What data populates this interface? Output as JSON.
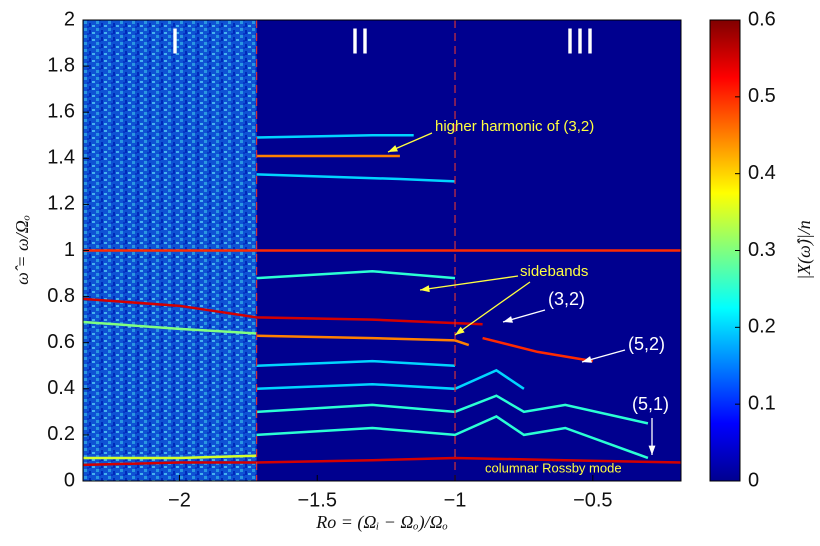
{
  "chart_data": {
    "type": "spectrogram",
    "xlabel": "Ro = (Ωᵢ − Ωₒ)/Ωₒ",
    "ylabel": "ω̂ = ω/Ωₒ",
    "colorbar_label": "|X(ω̂)|/n",
    "colormap": "jet",
    "background_color": "#00008f",
    "xlim": [
      -2.35,
      -0.18
    ],
    "ylim": [
      0,
      2
    ],
    "xticks": [
      {
        "value": -2,
        "label": "−2"
      },
      {
        "value": -1.5,
        "label": "−1.5"
      },
      {
        "value": -1,
        "label": "−1"
      },
      {
        "value": -0.5,
        "label": "−0.5"
      }
    ],
    "yticks": [
      0,
      0.2,
      0.4,
      0.6,
      0.8,
      1,
      1.2,
      1.4,
      1.6,
      1.8,
      2
    ],
    "clim": [
      0,
      0.6
    ],
    "cticks": [
      0,
      0.1,
      0.2,
      0.3,
      0.4,
      0.5,
      0.6
    ],
    "vlines": [
      -1.72,
      -1
    ],
    "vline_color": "#d0303a",
    "regions": [
      "I",
      "II",
      "III"
    ],
    "series": [
      {
        "level": 0.5,
        "x": [
          -2.35,
          -1.72,
          -1,
          -0.18
        ],
        "values": [
          1.0,
          1.0,
          1.0,
          1.0
        ]
      },
      {
        "level": 0.45,
        "x": [
          -1.72,
          -1.45,
          -1.2
        ],
        "values": [
          1.41,
          1.41,
          1.41
        ]
      },
      {
        "level": 0.55,
        "x": [
          -2.35,
          -2,
          -1.72,
          -1.3,
          -1,
          -0.6,
          -0.18
        ],
        "values": [
          0.07,
          0.08,
          0.08,
          0.09,
          0.1,
          0.09,
          0.08
        ]
      },
      {
        "level": 0.55,
        "x": [
          -2.35,
          -2,
          -1.72,
          -1.3,
          -0.9
        ],
        "values": [
          0.79,
          0.76,
          0.71,
          0.7,
          0.68
        ]
      },
      {
        "level": 0.45,
        "x": [
          -1.72,
          -1.3,
          -1,
          -0.95
        ],
        "values": [
          0.63,
          0.62,
          0.61,
          0.59
        ]
      },
      {
        "level": 0.5,
        "x": [
          -0.9,
          -0.7,
          -0.5
        ],
        "values": [
          0.62,
          0.56,
          0.52
        ]
      },
      {
        "level": 0.25,
        "x": [
          -1.72,
          -1.3,
          -1
        ],
        "values": [
          0.88,
          0.91,
          0.88
        ]
      },
      {
        "level": 0.2,
        "x": [
          -1.72,
          -1.2,
          -1
        ],
        "values": [
          1.33,
          1.31,
          1.3
        ]
      },
      {
        "level": 0.2,
        "x": [
          -1.72,
          -1.3,
          -1.15
        ],
        "values": [
          1.49,
          1.5,
          1.5
        ]
      },
      {
        "level": 0.2,
        "x": [
          -1.72,
          -1.3,
          -1
        ],
        "values": [
          0.5,
          0.52,
          0.5
        ]
      },
      {
        "level": 0.2,
        "x": [
          -1.72,
          -1.3,
          -1,
          -0.85,
          -0.75
        ],
        "values": [
          0.4,
          0.42,
          0.4,
          0.48,
          0.4
        ]
      },
      {
        "level": 0.25,
        "x": [
          -1.72,
          -1.3,
          -1,
          -0.85,
          -0.75,
          -0.6,
          -0.3
        ],
        "values": [
          0.3,
          0.33,
          0.3,
          0.37,
          0.3,
          0.33,
          0.25
        ]
      },
      {
        "level": 0.25,
        "x": [
          -1.72,
          -1.3,
          -1,
          -0.85,
          -0.75,
          -0.6,
          -0.3
        ],
        "values": [
          0.2,
          0.23,
          0.2,
          0.28,
          0.2,
          0.23,
          0.1
        ]
      },
      {
        "level": 0.3,
        "x": [
          -2.35,
          -2,
          -1.72
        ],
        "values": [
          0.69,
          0.66,
          0.64
        ]
      },
      {
        "level": 0.35,
        "x": [
          -2.35,
          -2,
          -1.72
        ],
        "values": [
          0.1,
          0.1,
          0.11
        ]
      }
    ],
    "annotations": [
      {
        "text": "higher harmonic of (3,2)"
      },
      {
        "text": "sidebands"
      },
      {
        "text": "(3,2)"
      },
      {
        "text": "(5,2)"
      },
      {
        "text": "(5,1)"
      },
      {
        "text": "columnar Rossby mode"
      }
    ]
  }
}
